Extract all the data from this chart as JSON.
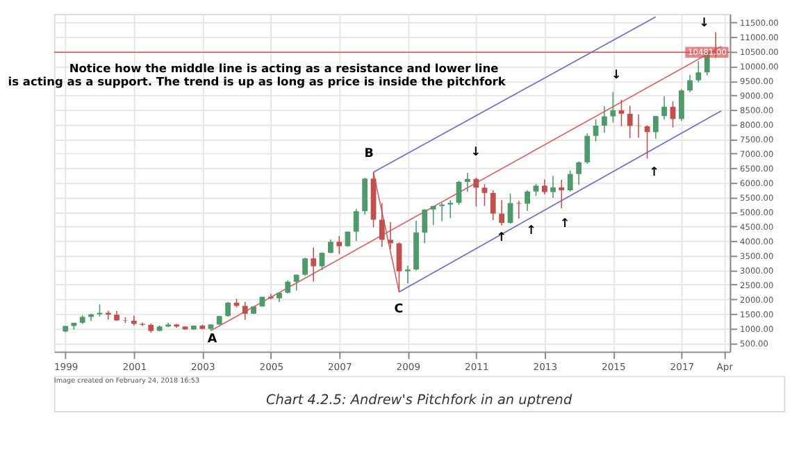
{
  "chart_data": {
    "type": "candlestick",
    "annotations": [
      "Notice how the middle line is acting as a resistance and lower line",
      "is acting as a support. The trend is up as long as price is inside the pitchfork",
      "Image created on February 24, 2018 16:53",
      "Chart 4.2.5: Andrew's Pitchfork in an uptrend",
      "A",
      "B",
      "C",
      "↓",
      "↓",
      "↓",
      "↑",
      "↑",
      "↑",
      "↑"
    ],
    "series": [
      {
        "type": "candlestick",
        "color": "#4e9a6a",
        "x": [
          "1999-01",
          "1999-04",
          "1999-07",
          "1999-10",
          "2000-01",
          "2001-10",
          "2002-01",
          "2002-10",
          "2003-04",
          "2003-07",
          "2003-10",
          "2004-07",
          "2004-10",
          "2005-04",
          "2005-07",
          "2005-10",
          "2006-01",
          "2006-07",
          "2006-10",
          "2007-04",
          "2007-07",
          "2007-10",
          "2009-01",
          "2009-04",
          "2009-07",
          "2009-10",
          "2010-01",
          "2010-04",
          "2010-07",
          "2010-10",
          "2012-01",
          "2012-07",
          "2012-10",
          "2013-04",
          "2013-10",
          "2014-01",
          "2014-04",
          "2014-07",
          "2014-10",
          "2015-01",
          "2016-04",
          "2016-07",
          "2017-01",
          "2017-04",
          "2017-07",
          "2017-10"
        ],
        "ohlc": [
          [
            890,
            1080,
            860,
            1080
          ],
          [
            1080,
            1190,
            950,
            1190
          ],
          [
            1190,
            1450,
            1150,
            1390
          ],
          [
            1390,
            1500,
            1250,
            1480
          ],
          [
            1480,
            1820,
            1400,
            1530
          ],
          [
            910,
            1100,
            900,
            1060
          ],
          [
            1060,
            1190,
            1040,
            1130
          ],
          [
            960,
            1100,
            940,
            1090
          ],
          [
            980,
            1140,
            920,
            1130
          ],
          [
            1130,
            1430,
            1120,
            1420
          ],
          [
            1420,
            1900,
            1400,
            1880
          ],
          [
            1500,
            1760,
            1490,
            1750
          ],
          [
            1750,
            2080,
            1740,
            2080
          ],
          [
            2030,
            2230,
            1900,
            2220
          ],
          [
            2220,
            2650,
            2200,
            2600
          ],
          [
            2600,
            2850,
            2300,
            2840
          ],
          [
            2840,
            3420,
            2800,
            3400
          ],
          [
            3130,
            3610,
            3000,
            3590
          ],
          [
            3590,
            4050,
            3580,
            3970
          ],
          [
            3820,
            4320,
            3800,
            4320
          ],
          [
            4320,
            5100,
            4000,
            5020
          ],
          [
            5020,
            6180,
            4900,
            6140
          ],
          [
            2960,
            3150,
            2540,
            3020
          ],
          [
            3020,
            4700,
            2980,
            4290
          ],
          [
            4290,
            5090,
            3920,
            5080
          ],
          [
            5080,
            5200,
            4540,
            5200
          ],
          [
            5200,
            5310,
            4680,
            5250
          ],
          [
            5250,
            5400,
            4790,
            5310
          ],
          [
            5310,
            6070,
            5240,
            6030
          ],
          [
            6030,
            6340,
            5690,
            6130
          ],
          [
            4620,
            5630,
            4590,
            5300
          ],
          [
            5280,
            5740,
            5030,
            5700
          ],
          [
            5700,
            5960,
            5550,
            5900
          ],
          [
            5680,
            6230,
            5480,
            5840
          ],
          [
            5740,
            6420,
            5700,
            6300
          ],
          [
            6300,
            6730,
            5930,
            6700
          ],
          [
            6700,
            7700,
            6650,
            7610
          ],
          [
            7610,
            8180,
            7420,
            7960
          ],
          [
            7960,
            8630,
            7720,
            8280
          ],
          [
            8280,
            9120,
            8070,
            8490
          ],
          [
            7740,
            8300,
            7520,
            8290
          ],
          [
            8290,
            8970,
            8170,
            8610
          ],
          [
            8190,
            9220,
            8130,
            9170
          ],
          [
            9170,
            9710,
            9110,
            9520
          ],
          [
            9520,
            10180,
            9450,
            9790
          ],
          [
            9790,
            10550,
            9690,
            10530
          ]
        ]
      },
      {
        "type": "candlestick",
        "color": "#c0504d",
        "x": [
          "2000-04",
          "2000-07",
          "2000-10",
          "2001-01",
          "2001-04",
          "2001-07",
          "2002-04",
          "2002-07",
          "2003-01",
          "2004-01",
          "2004-04",
          "2005-01",
          "2006-04",
          "2007-01",
          "2008-01",
          "2008-04",
          "2008-07",
          "2008-10",
          "2011-01",
          "2011-04",
          "2011-07",
          "2011-10",
          "2012-04",
          "2013-01",
          "2013-07",
          "2015-04",
          "2015-07",
          "2015-10",
          "2016-01",
          "2016-10",
          "2018-01"
        ],
        "ohlc": [
          [
            1530,
            1600,
            1300,
            1470
          ],
          [
            1470,
            1600,
            1250,
            1270
          ],
          [
            1270,
            1380,
            1180,
            1260
          ],
          [
            1260,
            1440,
            1100,
            1150
          ],
          [
            1150,
            1200,
            1080,
            1120
          ],
          [
            1120,
            1160,
            850,
            910
          ],
          [
            1130,
            1160,
            1020,
            1060
          ],
          [
            1060,
            1060,
            950,
            960
          ],
          [
            1090,
            1120,
            960,
            980
          ],
          [
            1880,
            2010,
            1720,
            1770
          ],
          [
            1770,
            1900,
            1290,
            1500
          ],
          [
            2080,
            2180,
            1990,
            2030
          ],
          [
            3400,
            3770,
            2600,
            3130
          ],
          [
            3970,
            4170,
            3550,
            3820
          ],
          [
            6140,
            6360,
            4470,
            4730
          ],
          [
            4730,
            5300,
            3800,
            4040
          ],
          [
            4040,
            4650,
            3720,
            3920
          ],
          [
            3920,
            3950,
            2250,
            2960
          ],
          [
            6130,
            6180,
            5180,
            5830
          ],
          [
            5830,
            5950,
            5200,
            5650
          ],
          [
            5650,
            5740,
            4720,
            4940
          ],
          [
            4940,
            5400,
            4530,
            4620
          ],
          [
            5300,
            5380,
            4770,
            5280
          ],
          [
            5900,
            6110,
            5600,
            5680
          ],
          [
            5840,
            6100,
            5120,
            5740
          ],
          [
            8490,
            8850,
            7940,
            8370
          ],
          [
            8370,
            8650,
            7540,
            7950
          ],
          [
            7950,
            8340,
            7550,
            7940
          ],
          [
            7940,
            7970,
            6830,
            7740
          ],
          [
            8610,
            8800,
            7900,
            8190
          ],
          [
            10530,
            11170,
            10280,
            10480
          ]
        ]
      },
      {
        "type": "line",
        "color": "#d46a6a",
        "x": [
          "2003-04",
          "2018-03"
        ],
        "values": [
          920,
          10680
        ]
      },
      {
        "type": "line",
        "color": "#d46a6a",
        "x": [
          "2008-01",
          "2008-10"
        ],
        "values": [
          6360,
          2250
        ]
      },
      {
        "type": "line",
        "color": "#7070c8",
        "x": [
          "2008-01",
          "2016-04"
        ],
        "values": [
          6360,
          11700
        ]
      },
      {
        "type": "line",
        "color": "#7070c8",
        "x": [
          "2008-10",
          "2018-03"
        ],
        "values": [
          2250,
          8470
        ]
      }
    ],
    "ref_lines": [
      {
        "axis": "y",
        "value": 10481,
        "label": "10481.00",
        "color": "#d9534f"
      }
    ],
    "xlim": [
      "1998-09",
      "2018-06"
    ],
    "xticks": [
      {
        "value": "1999-01",
        "label": "1999"
      },
      {
        "value": "2001-01",
        "label": "2001"
      },
      {
        "value": "2003-01",
        "label": "2003"
      },
      {
        "value": "2005-01",
        "label": "2005"
      },
      {
        "value": "2007-01",
        "label": "2007"
      },
      {
        "value": "2009-01",
        "label": "2009"
      },
      {
        "value": "2011-01",
        "label": "2011"
      },
      {
        "value": "2013-01",
        "label": "2013"
      },
      {
        "value": "2015-01",
        "label": "2015"
      },
      {
        "value": "2017-01",
        "label": "2017"
      },
      {
        "value": "2018-04",
        "label": "Apr"
      }
    ],
    "ylim": [
      200,
      11800
    ],
    "yticks": [
      {
        "value": 500,
        "label": "500.00"
      },
      {
        "value": 1000,
        "label": "1000.00"
      },
      {
        "value": 1500,
        "label": "1500.00"
      },
      {
        "value": 2000,
        "label": "2000.00"
      },
      {
        "value": 2500,
        "label": "2500.00"
      },
      {
        "value": 3000,
        "label": "3000.00"
      },
      {
        "value": 3500,
        "label": "3500.00"
      },
      {
        "value": 4000,
        "label": "4000.00"
      },
      {
        "value": 4500,
        "label": "4500.00"
      },
      {
        "value": 5000,
        "label": "5000.00"
      },
      {
        "value": 5500,
        "label": "5500.00"
      },
      {
        "value": 6000,
        "label": "6000.00"
      },
      {
        "value": 6500,
        "label": "6500.00"
      },
      {
        "value": 7000,
        "label": "7000.00"
      },
      {
        "value": 7500,
        "label": "7500.00"
      },
      {
        "value": 8000,
        "label": "8000.00"
      },
      {
        "value": 8500,
        "label": "8500.00"
      },
      {
        "value": 9000,
        "label": "9000.00"
      },
      {
        "value": 9500,
        "label": "9500.00"
      },
      {
        "value": 10000,
        "label": "10000.00"
      },
      {
        "value": 10500,
        "label": "10500.00"
      },
      {
        "value": 11000,
        "label": "11000.00"
      },
      {
        "value": 11500,
        "label": "11500.00"
      }
    ],
    "grid": true
  }
}
